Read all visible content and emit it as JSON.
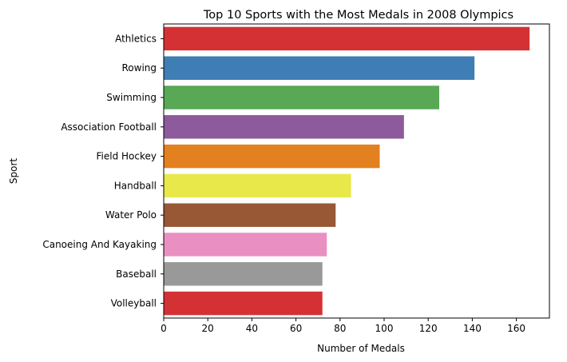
{
  "chart_data": {
    "type": "bar",
    "orientation": "horizontal",
    "title": "Top 10 Sports with the Most Medals in 2008 Olympics",
    "xlabel": "Number of Medals",
    "ylabel": "Sport",
    "xlim": [
      0,
      175
    ],
    "xticks": [
      0,
      20,
      40,
      60,
      80,
      100,
      120,
      140,
      160
    ],
    "grid": false,
    "categories": [
      "Athletics",
      "Rowing",
      "Swimming",
      "Association Football",
      "Field Hockey",
      "Handball",
      "Water Polo",
      "Canoeing And Kayaking",
      "Baseball",
      "Volleyball"
    ],
    "values": [
      166,
      141,
      125,
      109,
      98,
      85,
      78,
      74,
      72,
      72
    ],
    "colors": [
      "#d43135",
      "#3f7db5",
      "#58a855",
      "#8d5a9c",
      "#e38020",
      "#e8e84b",
      "#985735",
      "#ea8fc2",
      "#999999",
      "#d43135"
    ]
  }
}
